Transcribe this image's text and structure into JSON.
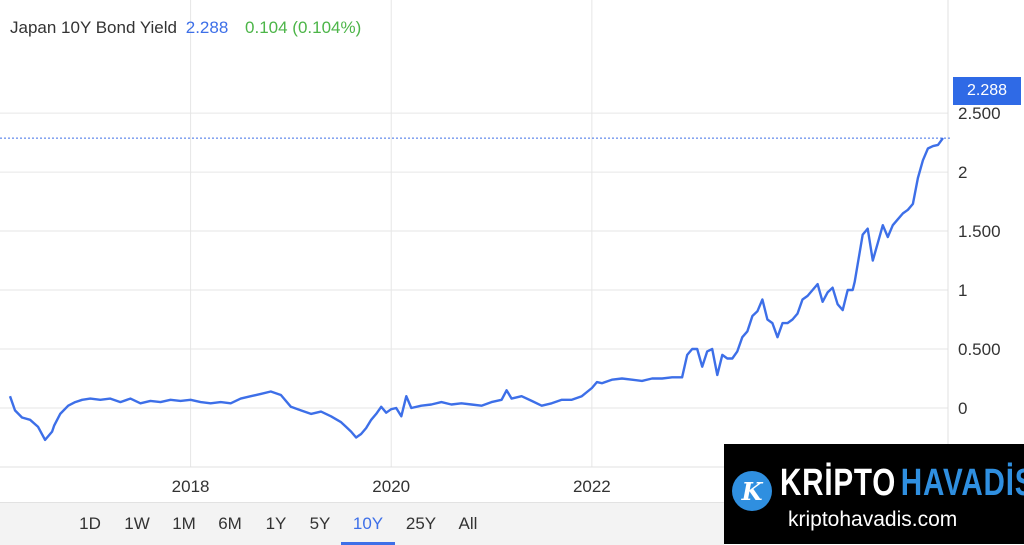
{
  "header": {
    "name": "Japan 10Y Bond Yield",
    "value": "2.288",
    "change": "0.104 (0.104%)"
  },
  "price_tag": "2.288",
  "range_buttons": [
    "1D",
    "1W",
    "1M",
    "6M",
    "1Y",
    "5Y",
    "10Y",
    "25Y",
    "All"
  ],
  "active_range": "10Y",
  "watermark": {
    "logo_letter": "K",
    "title_part1": "KRİPTO",
    "title_part2": "HAVADİS",
    "url": "kriptohavadis.com"
  },
  "colors": {
    "line": "#3d6fe8",
    "change": "#4cb548",
    "price_tag": "#2f6ae6"
  },
  "chart_data": {
    "type": "line",
    "title": "Japan 10Y Bond Yield",
    "xlabel": "",
    "ylabel": "",
    "x_ticks": [
      2018,
      2020,
      2022
    ],
    "x_range": [
      2016.2,
      2025.55
    ],
    "y_ticks": [
      0,
      0.5,
      1,
      1.5,
      2,
      2.5
    ],
    "y_tick_labels": [
      "0",
      "0.500",
      "1",
      "1.500",
      "2",
      "2.500"
    ],
    "ylim": [
      -0.5,
      2.95
    ],
    "grid": true,
    "current_value": 2.288,
    "series": [
      {
        "x": [
          2016.2,
          2016.25,
          2016.32,
          2016.4,
          2016.48,
          2016.55,
          2016.62,
          2016.64,
          2016.7,
          2016.78,
          2016.85,
          2016.92,
          2017.0,
          2017.1,
          2017.2,
          2017.3,
          2017.4,
          2017.5,
          2017.6,
          2017.7,
          2017.8,
          2017.9,
          2018.0,
          2018.1,
          2018.2,
          2018.3,
          2018.4,
          2018.5,
          2018.6,
          2018.7,
          2018.8,
          2018.9,
          2019.0,
          2019.1,
          2019.2,
          2019.3,
          2019.4,
          2019.5,
          2019.55,
          2019.6,
          2019.65,
          2019.7,
          2019.75,
          2019.8,
          2019.85,
          2019.9,
          2019.95,
          2020.0,
          2020.05,
          2020.1,
          2020.15,
          2020.2,
          2020.3,
          2020.4,
          2020.5,
          2020.6,
          2020.7,
          2020.8,
          2020.9,
          2021.0,
          2021.1,
          2021.15,
          2021.2,
          2021.3,
          2021.4,
          2021.5,
          2021.6,
          2021.7,
          2021.8,
          2021.9,
          2022.0,
          2022.05,
          2022.1,
          2022.2,
          2022.3,
          2022.4,
          2022.5,
          2022.6,
          2022.7,
          2022.8,
          2022.9,
          2022.95,
          2023.0,
          2023.05,
          2023.1,
          2023.15,
          2023.2,
          2023.25,
          2023.3,
          2023.35,
          2023.4,
          2023.45,
          2023.5,
          2023.55,
          2023.6,
          2023.65,
          2023.7,
          2023.75,
          2023.8,
          2023.85,
          2023.9,
          2023.95,
          2024.0,
          2024.05,
          2024.1,
          2024.15,
          2024.2,
          2024.25,
          2024.3,
          2024.35,
          2024.4,
          2024.45,
          2024.5,
          2024.55,
          2024.6,
          2024.62,
          2024.65,
          2024.7,
          2024.75,
          2024.8,
          2024.85,
          2024.9,
          2024.95,
          2025.0,
          2025.05,
          2025.1,
          2025.15,
          2025.2,
          2025.25,
          2025.3,
          2025.35,
          2025.4,
          2025.45,
          2025.5
        ],
        "y": [
          0.1,
          -0.02,
          -0.08,
          -0.1,
          -0.16,
          -0.27,
          -0.2,
          -0.15,
          -0.05,
          0.02,
          0.05,
          0.07,
          0.08,
          0.07,
          0.08,
          0.05,
          0.08,
          0.04,
          0.06,
          0.05,
          0.07,
          0.06,
          0.07,
          0.05,
          0.04,
          0.05,
          0.04,
          0.08,
          0.1,
          0.12,
          0.14,
          0.11,
          0.01,
          -0.02,
          -0.05,
          -0.03,
          -0.07,
          -0.12,
          -0.16,
          -0.2,
          -0.25,
          -0.22,
          -0.17,
          -0.1,
          -0.05,
          0.01,
          -0.04,
          -0.01,
          0.0,
          -0.07,
          0.1,
          0.0,
          0.02,
          0.03,
          0.05,
          0.03,
          0.04,
          0.03,
          0.02,
          0.05,
          0.07,
          0.15,
          0.08,
          0.1,
          0.06,
          0.02,
          0.04,
          0.07,
          0.07,
          0.1,
          0.17,
          0.22,
          0.21,
          0.24,
          0.25,
          0.24,
          0.23,
          0.25,
          0.25,
          0.26,
          0.26,
          0.45,
          0.5,
          0.5,
          0.35,
          0.48,
          0.5,
          0.28,
          0.45,
          0.42,
          0.42,
          0.48,
          0.6,
          0.65,
          0.78,
          0.82,
          0.92,
          0.75,
          0.72,
          0.6,
          0.72,
          0.72,
          0.75,
          0.8,
          0.92,
          0.95,
          1.0,
          1.05,
          0.9,
          0.98,
          1.02,
          0.88,
          0.83,
          1.0,
          1.0,
          1.07,
          1.22,
          1.47,
          1.52,
          1.25,
          1.4,
          1.55,
          1.45,
          1.55,
          1.6,
          1.65,
          1.68,
          1.73,
          1.95,
          2.1,
          2.2,
          2.22,
          2.23,
          2.288
        ]
      }
    ]
  }
}
